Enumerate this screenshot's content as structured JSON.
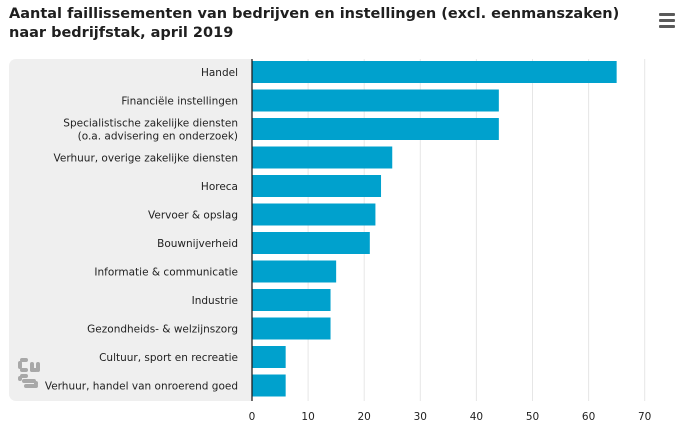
{
  "title_line1": "Aantal faillissementen van bedrijven en instellingen (excl. eenmanszaken)",
  "title_line2": "naar bedrijfstak, april 2019",
  "menu_icon": "hamburger-menu-icon",
  "logo_icon": "cbs-logo-icon",
  "colors": {
    "bar": "#00a1cd",
    "plot_background": "#efefef",
    "grid": "#e6e6e6",
    "axis": "#1f1f1f"
  },
  "chart_data": {
    "type": "bar",
    "orientation": "horizontal",
    "title": "Aantal faillissementen van bedrijven en instellingen (excl. eenmanszaken) naar bedrijfstak, april 2019",
    "categories": [
      [
        "Handel"
      ],
      [
        "Financiële instellingen"
      ],
      [
        "Specialistische zakelijke diensten",
        "(o.a. advisering en onderzoek)"
      ],
      [
        "Verhuur, overige zakelijke diensten"
      ],
      [
        "Horeca"
      ],
      [
        "Vervoer & opslag"
      ],
      [
        "Bouwnijverheid"
      ],
      [
        "Informatie & communicatie"
      ],
      [
        "Industrie"
      ],
      [
        "Gezondheids- & welzijnszorg"
      ],
      [
        "Cultuur, sport en recreatie"
      ],
      [
        "Verhuur, handel van onroerend goed"
      ]
    ],
    "values": [
      65,
      44,
      44,
      25,
      23,
      22,
      21,
      15,
      14,
      14,
      6,
      6
    ],
    "xlim": [
      0,
      70
    ],
    "xticks": [
      0,
      10,
      20,
      30,
      40,
      50,
      60,
      70
    ],
    "grid": true,
    "legend": "none"
  }
}
